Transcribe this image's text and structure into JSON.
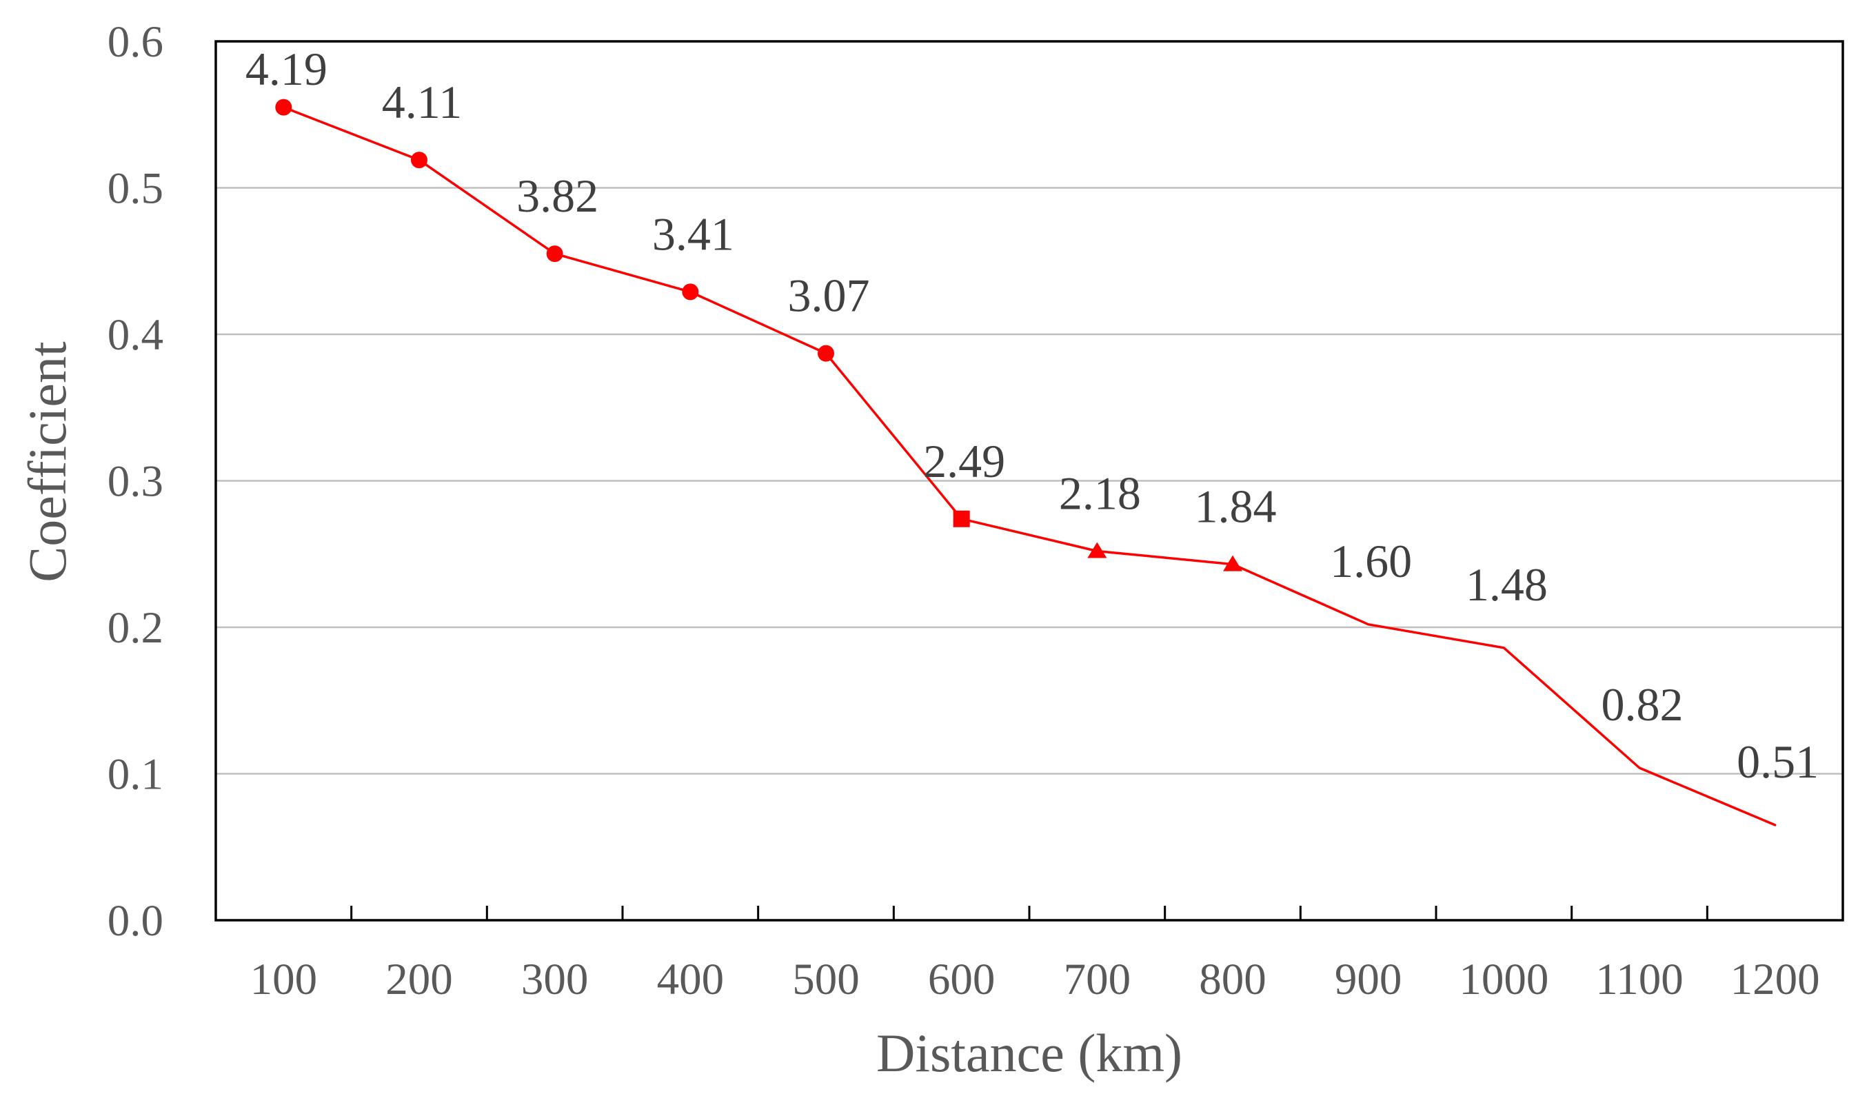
{
  "chart_data": {
    "type": "line",
    "xlabel": "Distance (km)",
    "ylabel": "Coefficient",
    "categories": [
      "100",
      "200",
      "300",
      "400",
      "500",
      "600",
      "700",
      "800",
      "900",
      "1000",
      "1100",
      "1200"
    ],
    "ylim": [
      0,
      0.6
    ],
    "yticks": [
      0,
      0.1,
      0.2,
      0.3,
      0.4,
      0.5,
      0.6
    ],
    "ytick_labels": [
      "0.0",
      "0.1",
      "0.2",
      "0.3",
      "0.4",
      "0.5",
      "0.6"
    ],
    "grid": true,
    "series": [
      {
        "color": "#ff0000",
        "values": [
          0.555,
          0.519,
          0.455,
          0.429,
          0.387,
          0.274,
          0.252,
          0.243,
          0.202,
          0.186,
          0.104,
          0.065
        ],
        "markers": [
          "circle",
          "circle",
          "circle",
          "circle",
          "circle",
          "square",
          "triangle",
          "triangle",
          null,
          null,
          null,
          null
        ],
        "data_labels": [
          "4.19",
          "4.11",
          "3.82",
          "3.41",
          "3.07",
          "2.49",
          "2.18",
          "1.84",
          "1.60",
          "1.48",
          "0.82",
          "0.51"
        ]
      }
    ]
  }
}
